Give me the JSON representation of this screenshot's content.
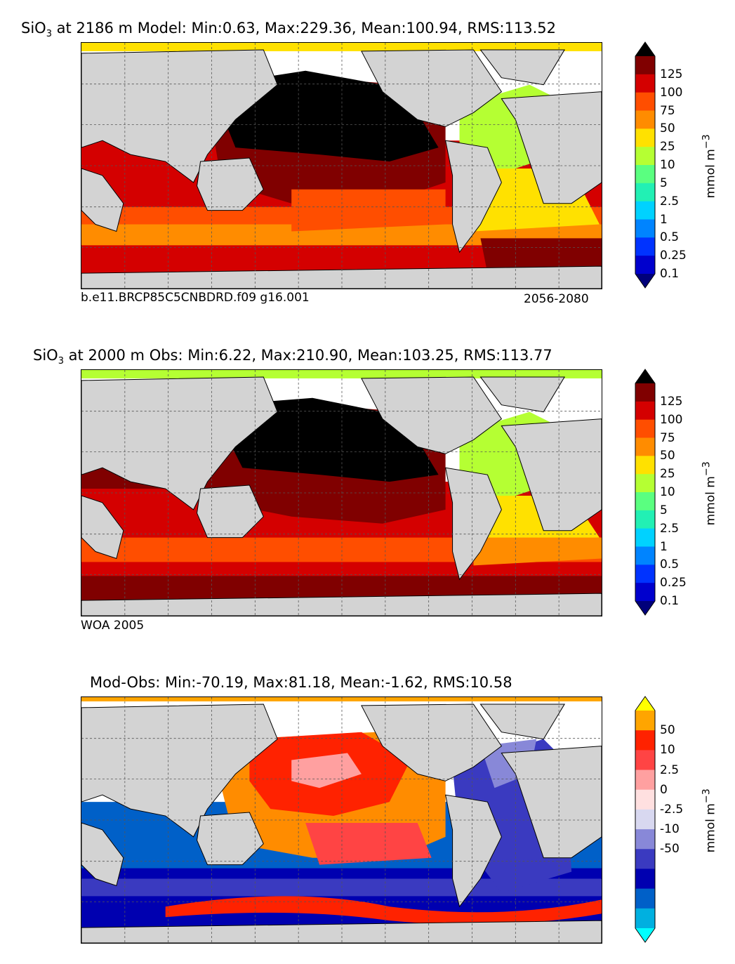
{
  "colors": {
    "land": "#d3d3d3",
    "missing": "#ffffff",
    "grid": "#555555"
  },
  "panels": [
    {
      "id": "model",
      "title_prefix": "SiO",
      "title_sub": "3",
      "title_rest": " at 2186 m Model: Min:0.63, Max:229.36, Mean:100.94, RMS:113.52",
      "caption_left": "b.e11.BRCP85C5CNBDRD.f09 g16.001",
      "caption_right": "2056-2080",
      "colorbar_label": "mmol m",
      "colorbar_label_sup": "−3",
      "colorbar_ticks": [
        "125",
        "100",
        "75",
        "50",
        "25",
        "10",
        "5",
        "2.5",
        "1",
        "0.5",
        "0.25",
        "0.1"
      ],
      "colorbar_colors": [
        "#000000",
        "#800000",
        "#d40000",
        "#ff4e00",
        "#ff8c00",
        "#ffe100",
        "#b5ff33",
        "#5aff80",
        "#22f0b4",
        "#00d2ff",
        "#0084ff",
        "#0033ff",
        "#0000cd",
        "#00007a"
      ]
    },
    {
      "id": "obs",
      "title_prefix": "SiO",
      "title_sub": "3",
      "title_rest": " at 2000 m Obs: Min:6.22, Max:210.90, Mean:103.25, RMS:113.77",
      "caption_left": "WOA 2005",
      "caption_right": "",
      "colorbar_label": "mmol m",
      "colorbar_label_sup": "−3",
      "colorbar_ticks": [
        "125",
        "100",
        "75",
        "50",
        "25",
        "10",
        "5",
        "2.5",
        "1",
        "0.5",
        "0.25",
        "0.1"
      ],
      "colorbar_colors": [
        "#000000",
        "#800000",
        "#d40000",
        "#ff4e00",
        "#ff8c00",
        "#ffe100",
        "#b5ff33",
        "#5aff80",
        "#22f0b4",
        "#00d2ff",
        "#0084ff",
        "#0033ff",
        "#0000cd",
        "#00007a"
      ]
    },
    {
      "id": "diff",
      "title_prefix": "",
      "title_sub": "",
      "title_rest": "Mod-Obs: Min:-70.19, Max:81.18, Mean:-1.62, RMS:10.58",
      "caption_left": "",
      "caption_right": "",
      "colorbar_label": "mmol m",
      "colorbar_label_sup": "−3",
      "colorbar_ticks": [
        "50",
        "10",
        "2.5",
        "0",
        "-2.5",
        "-10",
        "-50"
      ],
      "colorbar_colors": [
        "#ffff00",
        "#ffa500",
        "#ff2200",
        "#ff4444",
        "#ffa0a0",
        "#ffe0e0",
        "#d8d8f0",
        "#8888d8",
        "#3a3ac0",
        "#0000b0",
        "#0060c8",
        "#00b0e0",
        "#00ffff"
      ]
    }
  ],
  "chart_data": [
    {
      "type": "heatmap",
      "title": "SiO3 at 2186 m Model: Min:0.63, Max:229.36, Mean:100.94, RMS:113.52",
      "variable": "SiO3",
      "depth": "2186 m",
      "stats": {
        "min": 0.63,
        "max": 229.36,
        "mean": 100.94,
        "rms": 113.52
      },
      "units": "mmol m^-3",
      "colorbar_levels": [
        0.1,
        0.25,
        0.5,
        1,
        2.5,
        5,
        10,
        25,
        50,
        75,
        100,
        125
      ],
      "regions": {
        "north_pacific": ">125",
        "south_pacific": "100-125",
        "indian": "75-125",
        "north_atlantic": "10-25",
        "south_atlantic": "25-50",
        "southern_ocean": "100-125"
      },
      "grid": true
    },
    {
      "type": "heatmap",
      "title": "SiO3 at 2000 m Obs: Min:6.22, Max:210.90, Mean:103.25, RMS:113.77",
      "variable": "SiO3",
      "depth": "2000 m",
      "stats": {
        "min": 6.22,
        "max": 210.9,
        "mean": 103.25,
        "rms": 113.77
      },
      "units": "mmol m^-3",
      "colorbar_levels": [
        0.1,
        0.25,
        0.5,
        1,
        2.5,
        5,
        10,
        25,
        50,
        75,
        100,
        125
      ],
      "regions": {
        "north_pacific": ">125",
        "south_pacific": "100-125",
        "indian": "100-125",
        "north_atlantic": "10-25",
        "south_atlantic": "25-75",
        "southern_ocean": "100-125"
      },
      "grid": true
    },
    {
      "type": "heatmap",
      "title": "Mod-Obs: Min:-70.19, Max:81.18, Mean:-1.62, RMS:10.58",
      "stats": {
        "min": -70.19,
        "max": 81.18,
        "mean": -1.62,
        "rms": 10.58
      },
      "units": "mmol m^-3",
      "colorbar_levels": [
        -50,
        -10,
        -2.5,
        0,
        2.5,
        10,
        50
      ],
      "regions": {
        "north_pacific": "2.5-10",
        "south_pacific": "10-50",
        "indian": "-10 to -50",
        "north_atlantic": "-2.5 to -10",
        "south_atlantic": "-2.5 to -10",
        "southern_ocean": "-10 to -50"
      },
      "grid": true
    }
  ]
}
